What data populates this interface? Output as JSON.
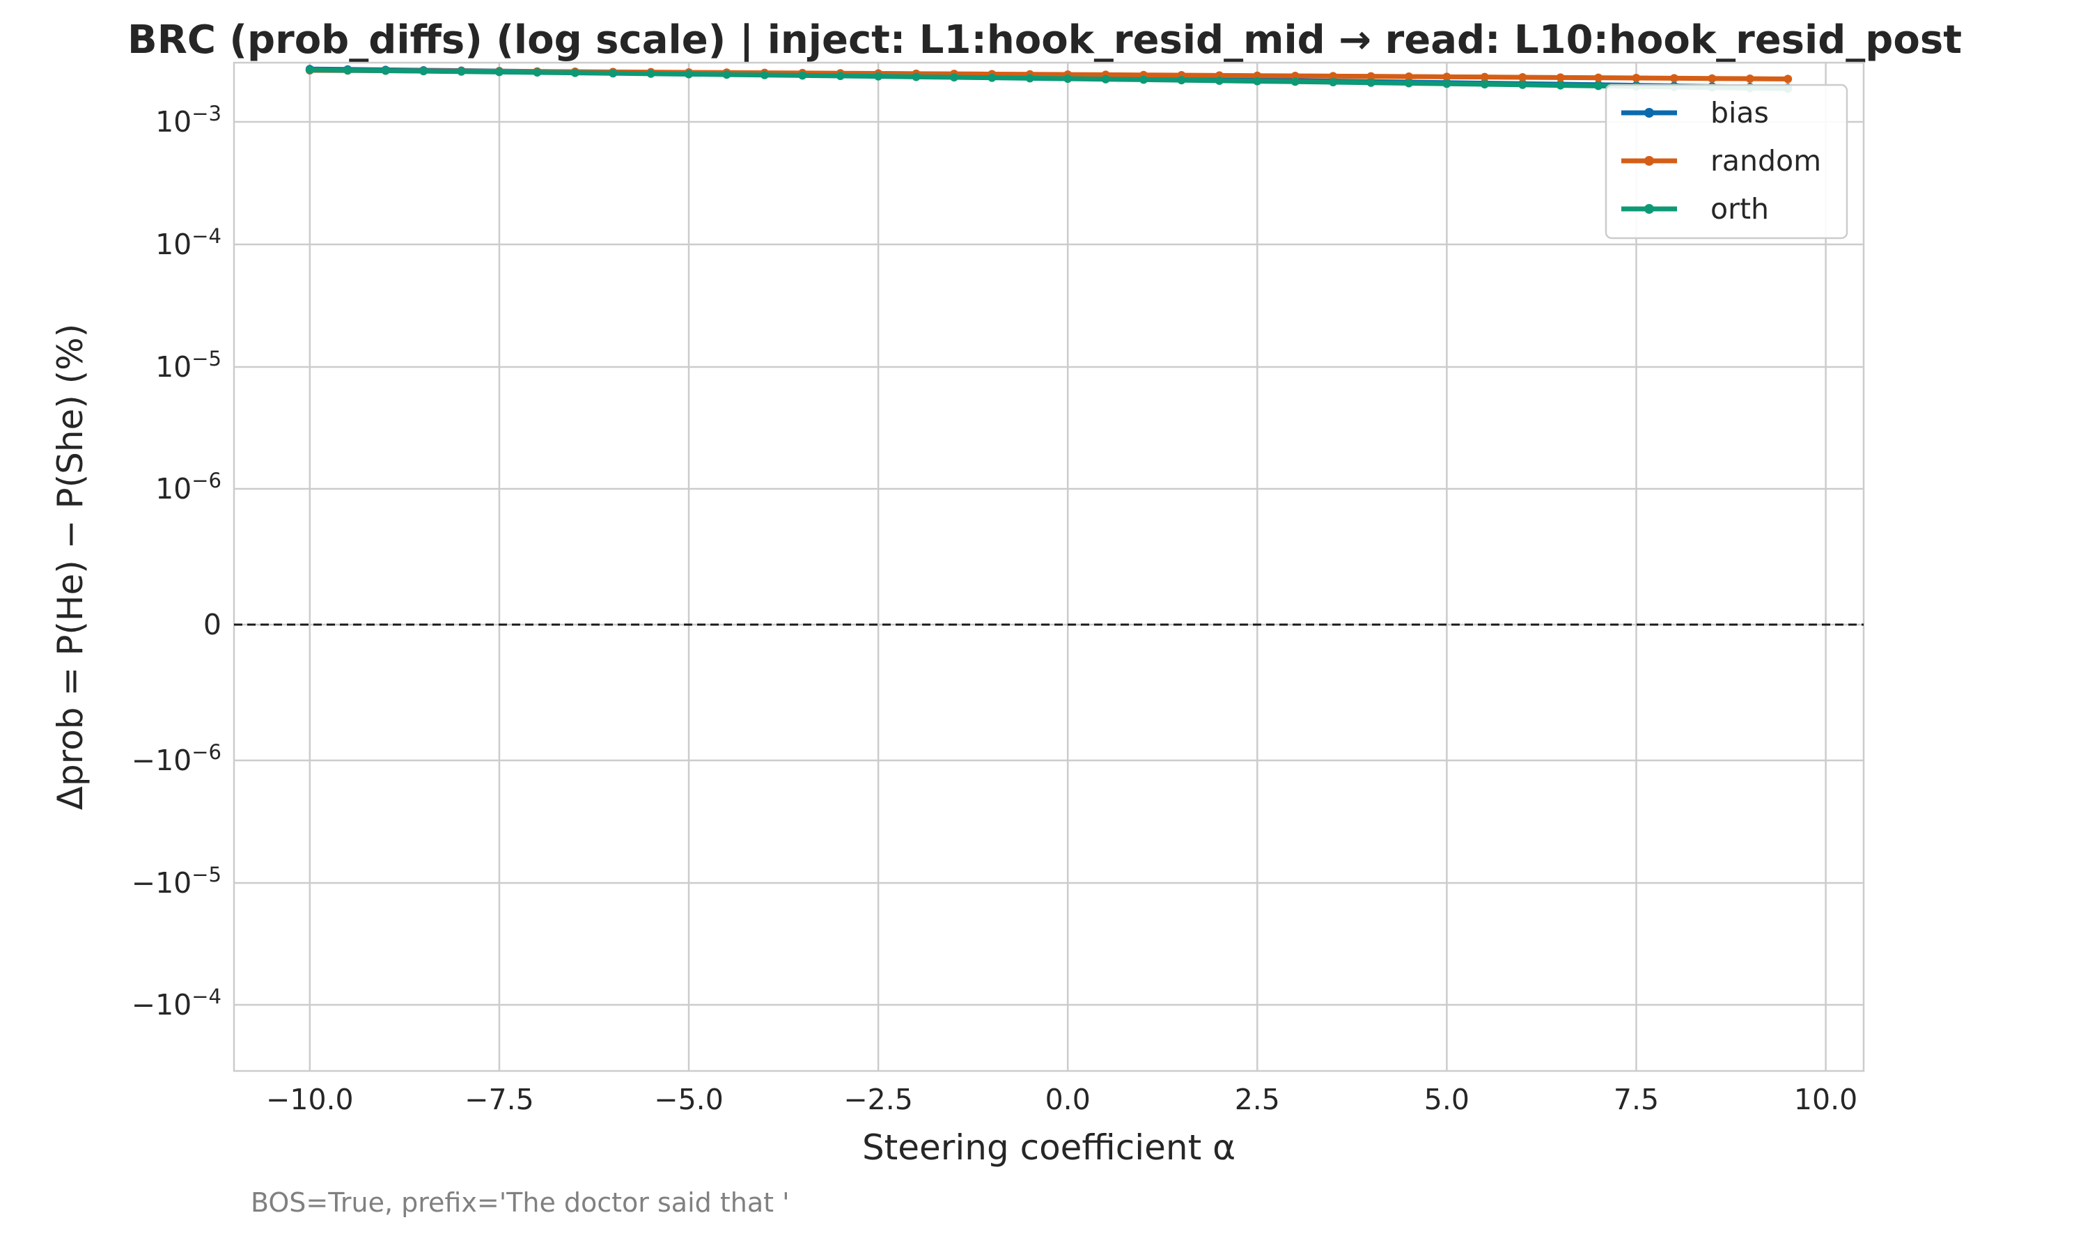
{
  "chart_data": {
    "type": "line",
    "title": "BRC (prob_diffs) (log scale) | inject: L1:hook_resid_mid → read: L10:hook_resid_post",
    "xlabel": "Steering coefficient α",
    "ylabel": "Δprob = P(He) − P(She) (%)",
    "y_scale": "symlog",
    "xlim": [
      -11,
      10.5
    ],
    "x_ticks": [
      -10.0,
      -7.5,
      -5.0,
      -2.5,
      0.0,
      2.5,
      5.0,
      7.5,
      10.0
    ],
    "x_tick_labels": [
      "−10.0",
      "−7.5",
      "−5.0",
      "−2.5",
      "0.0",
      "2.5",
      "5.0",
      "7.5",
      "10.0"
    ],
    "y_tick_labels": [
      "10",
      "10",
      "10",
      "10",
      "0",
      "−10",
      "−10",
      "−10"
    ],
    "y_tick_exponents": [
      "−3",
      "−4",
      "−5",
      "−6",
      "",
      "−6",
      "−5",
      "−4"
    ],
    "grid": true,
    "legend_position": "top-right",
    "reference_line": 0,
    "footnote": "BOS=True, prefix='The doctor said that '",
    "x": [
      -10.0,
      -9.5,
      -9.0,
      -8.5,
      -8.0,
      -7.5,
      -7.0,
      -6.5,
      -6.0,
      -5.5,
      -5.0,
      -4.5,
      -4.0,
      -3.5,
      -3.0,
      -2.5,
      -2.0,
      -1.5,
      -1.0,
      -0.5,
      0.0,
      0.5,
      1.0,
      1.5,
      2.0,
      2.5,
      3.0,
      3.5,
      4.0,
      4.5,
      5.0,
      5.5,
      6.0,
      6.5,
      7.0,
      7.5,
      8.0,
      8.5,
      9.0,
      9.5
    ],
    "series": [
      {
        "name": "bias",
        "color": "#0a6aad",
        "values": [
          0.00266,
          0.00264,
          0.00262,
          0.0026,
          0.00258,
          0.00256,
          0.00254,
          0.00252,
          0.0025,
          0.00248,
          0.00246,
          0.00244,
          0.00242,
          0.0024,
          0.00238,
          0.00236,
          0.00234,
          0.00232,
          0.0023,
          0.00228,
          0.00226,
          0.00224,
          0.00222,
          0.0022,
          0.00218,
          0.00216,
          0.00214,
          0.00212,
          0.0021,
          0.00208,
          0.00206,
          0.00204,
          0.00202,
          0.002,
          0.00198,
          0.00196,
          0.00194,
          0.00192,
          0.0019,
          0.00188
        ]
      },
      {
        "name": "random",
        "color": "#d55e16",
        "values": [
          0.0026,
          0.00259,
          0.00258,
          0.00257,
          0.00256,
          0.00255,
          0.00254,
          0.00253,
          0.00252,
          0.00251,
          0.0025,
          0.00249,
          0.00248,
          0.00247,
          0.00246,
          0.00245,
          0.00244,
          0.00243,
          0.00242,
          0.00241,
          0.0024,
          0.00239,
          0.00238,
          0.00237,
          0.00236,
          0.00235,
          0.00234,
          0.00233,
          0.00232,
          0.00231,
          0.0023,
          0.00229,
          0.00228,
          0.00227,
          0.00226,
          0.00225,
          0.00224,
          0.00223,
          0.00222,
          0.00221
        ]
      },
      {
        "name": "orth",
        "color": "#0d9976",
        "values": [
          0.00262,
          0.0026,
          0.00258,
          0.00256,
          0.00254,
          0.00252,
          0.0025,
          0.00248,
          0.00246,
          0.00244,
          0.00242,
          0.0024,
          0.00238,
          0.00236,
          0.00234,
          0.00232,
          0.0023,
          0.00228,
          0.00226,
          0.00224,
          0.00222,
          0.0022,
          0.00218,
          0.00216,
          0.00214,
          0.00212,
          0.0021,
          0.00208,
          0.00206,
          0.00204,
          0.00202,
          0.002,
          0.00198,
          0.00196,
          0.00194,
          0.00192,
          0.0019,
          0.00188,
          0.00186,
          0.00184
        ]
      }
    ]
  }
}
